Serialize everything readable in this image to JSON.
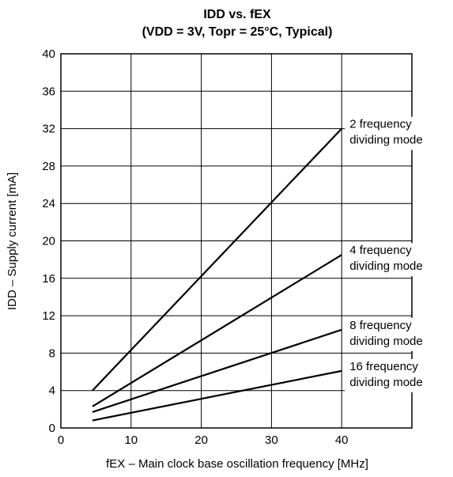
{
  "chart_data": {
    "type": "line",
    "title": "IDD vs. fEX",
    "subtitle": "(VDD = 3V, Topr = 25°C, Typical)",
    "xlabel": "fEX – Main clock base oscillation frequency [MHz]",
    "ylabel": "IDD – Supply current [mA]",
    "xlim": [
      0,
      50
    ],
    "ylim": [
      0,
      40
    ],
    "x_ticks": [
      "0",
      "10",
      "20",
      "30",
      "40"
    ],
    "y_ticks": [
      "0",
      "4",
      "8",
      "12",
      "16",
      "20",
      "24",
      "28",
      "32",
      "36",
      "40"
    ],
    "grid": true,
    "series": [
      {
        "name": "2 frequency dividing mode",
        "name_lines": [
          "2 frequency",
          "dividing mode"
        ],
        "x": [
          4.5,
          40
        ],
        "y": [
          4.0,
          32.0
        ]
      },
      {
        "name": "4 frequency dividing mode",
        "name_lines": [
          "4 frequency",
          "dividing mode"
        ],
        "x": [
          4.5,
          40
        ],
        "y": [
          2.3,
          18.5
        ]
      },
      {
        "name": "8 frequency dividing mode",
        "name_lines": [
          "8 frequency",
          "dividing mode"
        ],
        "x": [
          4.5,
          40
        ],
        "y": [
          1.7,
          10.5
        ]
      },
      {
        "name": "16 frequency dividing mode",
        "name_lines": [
          "16 frequency",
          "dividing mode"
        ],
        "x": [
          4.5,
          40
        ],
        "y": [
          0.8,
          6.1
        ]
      }
    ]
  }
}
